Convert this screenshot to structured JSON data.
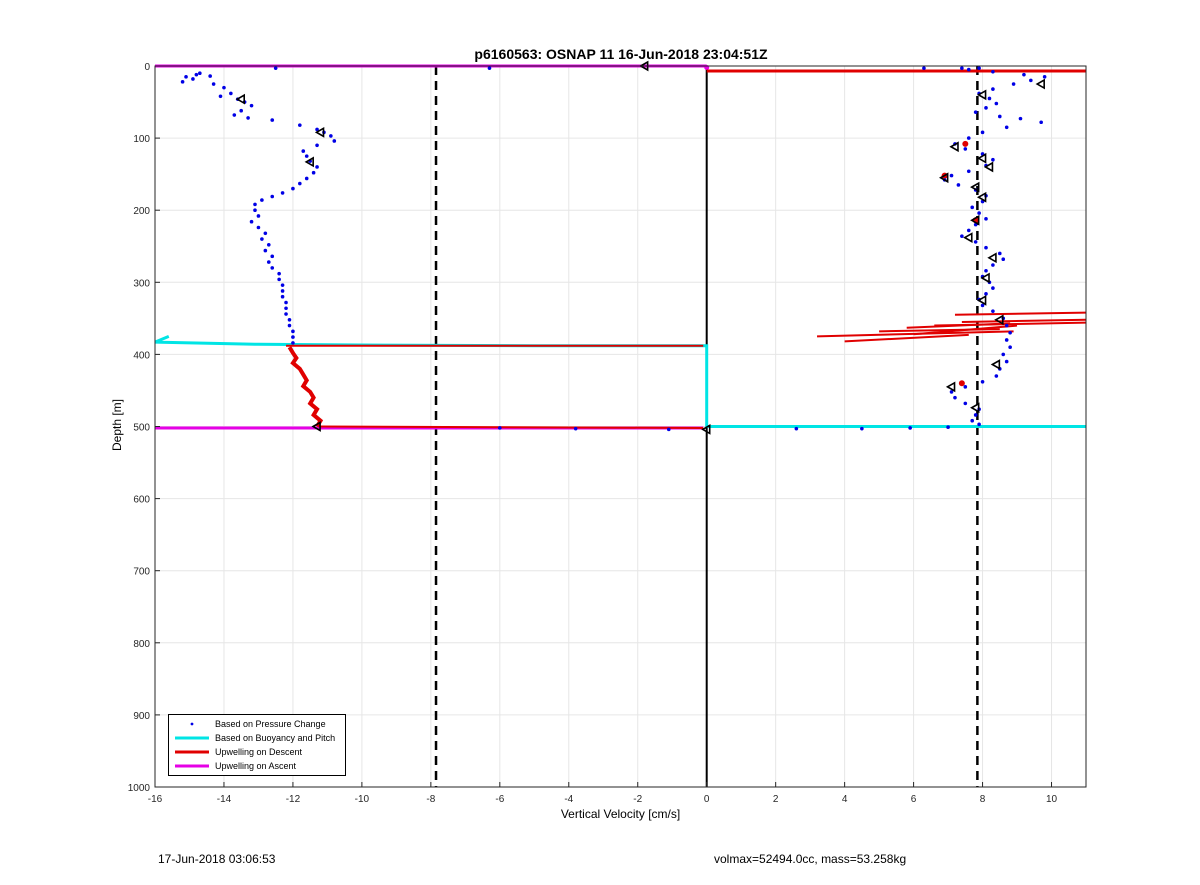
{
  "chart_data": {
    "type": "scatter",
    "title": "p6160563: OSNAP 11 16-Jun-2018 23:04:51Z",
    "xlabel": "Vertical Velocity [cm/s]",
    "ylabel": "Depth [m]",
    "xlim": [
      -16,
      11
    ],
    "ylim": [
      0,
      1000
    ],
    "y_reversed": true,
    "grid": true,
    "x_ticks": [
      -16,
      -14,
      -12,
      -10,
      -8,
      -6,
      -4,
      -2,
      0,
      2,
      4,
      6,
      8,
      10
    ],
    "y_ticks": [
      0,
      100,
      200,
      300,
      400,
      500,
      600,
      700,
      800,
      900,
      1000
    ],
    "legend_position": "bottom-left",
    "reference_lines": {
      "dashed_x": [
        -7.85,
        7.85
      ],
      "solid_x": [
        0
      ]
    },
    "series": [
      {
        "name": "Based on Pressure Change",
        "style": "dots",
        "color": "#0000e6",
        "points": [
          [
            -14.8,
            12
          ],
          [
            -15.1,
            15
          ],
          [
            -14.7,
            10
          ],
          [
            -14.4,
            14
          ],
          [
            -14.9,
            18
          ],
          [
            -15.2,
            22
          ],
          [
            -14.3,
            25
          ],
          [
            -14.0,
            30
          ],
          [
            -13.8,
            38
          ],
          [
            -14.1,
            42
          ],
          [
            -13.6,
            46
          ],
          [
            -13.4,
            50
          ],
          [
            -13.2,
            55
          ],
          [
            -13.5,
            62
          ],
          [
            -13.7,
            68
          ],
          [
            -13.3,
            72
          ],
          [
            -12.6,
            75
          ],
          [
            -11.8,
            82
          ],
          [
            -11.3,
            88
          ],
          [
            -11.1,
            92
          ],
          [
            -10.9,
            97
          ],
          [
            -10.8,
            104
          ],
          [
            -11.3,
            110
          ],
          [
            -11.7,
            118
          ],
          [
            -11.6,
            125
          ],
          [
            -11.5,
            132
          ],
          [
            -11.3,
            140
          ],
          [
            -11.4,
            148
          ],
          [
            -11.6,
            156
          ],
          [
            -11.8,
            163
          ],
          [
            -12.0,
            170
          ],
          [
            -12.3,
            176
          ],
          [
            -12.6,
            181
          ],
          [
            -12.9,
            186
          ],
          [
            -13.1,
            192
          ],
          [
            -13.1,
            200
          ],
          [
            -13.0,
            208
          ],
          [
            -13.2,
            216
          ],
          [
            -13.0,
            224
          ],
          [
            -12.8,
            232
          ],
          [
            -12.9,
            240
          ],
          [
            -12.7,
            248
          ],
          [
            -12.8,
            256
          ],
          [
            -12.6,
            264
          ],
          [
            -12.7,
            272
          ],
          [
            -12.6,
            280
          ],
          [
            -12.4,
            288
          ],
          [
            -12.4,
            296
          ],
          [
            -12.3,
            304
          ],
          [
            -12.3,
            312
          ],
          [
            -12.3,
            320
          ],
          [
            -12.2,
            328
          ],
          [
            -12.2,
            336
          ],
          [
            -12.2,
            344
          ],
          [
            -12.1,
            352
          ],
          [
            -12.1,
            360
          ],
          [
            -12.0,
            368
          ],
          [
            -12.0,
            376
          ],
          [
            -12.0,
            384
          ],
          [
            -6.3,
            3
          ],
          [
            -12.5,
            3
          ],
          [
            6.3,
            3
          ],
          [
            7.4,
            3
          ],
          [
            7.9,
            3
          ],
          [
            7.6,
            5
          ],
          [
            8.3,
            8
          ],
          [
            9.2,
            12
          ],
          [
            9.8,
            15
          ],
          [
            9.4,
            20
          ],
          [
            8.9,
            25
          ],
          [
            8.3,
            32
          ],
          [
            7.9,
            38
          ],
          [
            8.2,
            45
          ],
          [
            8.4,
            52
          ],
          [
            8.1,
            58
          ],
          [
            7.8,
            64
          ],
          [
            8.5,
            70
          ],
          [
            9.1,
            73
          ],
          [
            9.7,
            78
          ],
          [
            8.7,
            85
          ],
          [
            8.0,
            92
          ],
          [
            7.6,
            100
          ],
          [
            7.2,
            108
          ],
          [
            7.5,
            115
          ],
          [
            8.0,
            122
          ],
          [
            8.3,
            130
          ],
          [
            8.1,
            138
          ],
          [
            7.6,
            146
          ],
          [
            7.1,
            152
          ],
          [
            6.9,
            158
          ],
          [
            7.3,
            165
          ],
          [
            7.8,
            172
          ],
          [
            8.1,
            180
          ],
          [
            8.0,
            188
          ],
          [
            7.7,
            196
          ],
          [
            7.9,
            204
          ],
          [
            8.1,
            212
          ],
          [
            7.8,
            220
          ],
          [
            7.6,
            228
          ],
          [
            7.4,
            236
          ],
          [
            7.8,
            244
          ],
          [
            8.1,
            252
          ],
          [
            8.5,
            260
          ],
          [
            8.6,
            268
          ],
          [
            8.3,
            276
          ],
          [
            8.1,
            284
          ],
          [
            8.0,
            292
          ],
          [
            8.2,
            300
          ],
          [
            8.3,
            308
          ],
          [
            8.1,
            316
          ],
          [
            7.9,
            324
          ],
          [
            8.0,
            332
          ],
          [
            8.3,
            340
          ],
          [
            8.6,
            350
          ],
          [
            8.7,
            360
          ],
          [
            8.8,
            370
          ],
          [
            8.7,
            380
          ],
          [
            8.8,
            390
          ],
          [
            8.6,
            400
          ],
          [
            8.7,
            410
          ],
          [
            8.5,
            420
          ],
          [
            8.4,
            430
          ],
          [
            8.0,
            438
          ],
          [
            7.5,
            445
          ],
          [
            7.1,
            452
          ],
          [
            7.2,
            460
          ],
          [
            7.5,
            468
          ],
          [
            7.9,
            476
          ],
          [
            7.8,
            484
          ],
          [
            7.7,
            492
          ],
          [
            7.9,
            497
          ],
          [
            -6.0,
            502
          ],
          [
            -3.8,
            503
          ],
          [
            -1.1,
            504
          ],
          [
            2.6,
            503
          ],
          [
            4.5,
            503
          ],
          [
            5.9,
            502
          ],
          [
            7.0,
            501
          ]
        ]
      },
      {
        "name": "Based on Buoyancy and Pitch",
        "style": "line",
        "color": "#00e5e5",
        "points": [
          [
            -15.6,
            375
          ],
          [
            -16,
            383
          ],
          [
            -13,
            386
          ],
          [
            -10,
            387
          ],
          [
            -5,
            388
          ],
          [
            -0.2,
            388
          ],
          [
            0,
            388
          ],
          [
            0,
            500
          ],
          [
            11,
            500
          ]
        ]
      },
      {
        "name": "Upwelling on Descent",
        "style": "line",
        "color": "#e00000",
        "points": [
          [
            0,
            7
          ],
          [
            11,
            7
          ]
        ],
        "descent_profile": [
          [
            -12.1,
            390
          ],
          [
            -12.0,
            398
          ],
          [
            -11.9,
            405
          ],
          [
            -12.0,
            412
          ],
          [
            -11.8,
            420
          ],
          [
            -11.7,
            428
          ],
          [
            -11.6,
            436
          ],
          [
            -11.7,
            444
          ],
          [
            -11.5,
            452
          ],
          [
            -11.4,
            460
          ],
          [
            -11.5,
            468
          ],
          [
            -11.3,
            476
          ],
          [
            -11.4,
            484
          ],
          [
            -11.2,
            492
          ],
          [
            -11.3,
            500
          ]
        ],
        "crossing_at_388": [
          [
            -12.2,
            388
          ],
          [
            -0.1,
            388
          ]
        ],
        "crossing_at_500": [
          [
            -11.2,
            500
          ],
          [
            -0.1,
            502
          ]
        ],
        "spikes": [
          [
            [
              7.2,
              345
            ],
            [
              11,
              342
            ]
          ],
          [
            [
              7.4,
              355
            ],
            [
              11,
              352
            ]
          ],
          [
            [
              6.6,
              360
            ],
            [
              11,
              356
            ]
          ],
          [
            [
              5.8,
              363
            ],
            [
              8.8,
              357
            ]
          ],
          [
            [
              3.2,
              375
            ],
            [
              8.9,
              368
            ]
          ],
          [
            [
              4.0,
              382
            ],
            [
              7.6,
              373
            ]
          ],
          [
            [
              5.0,
              368
            ],
            [
              8.5,
              365
            ]
          ],
          [
            [
              6.0,
              372
            ],
            [
              9.0,
              360
            ]
          ]
        ],
        "dots": [
          [
            7.5,
            108
          ],
          [
            6.9,
            152
          ],
          [
            7.8,
            214
          ],
          [
            7.4,
            440
          ]
        ]
      },
      {
        "name": "Upwelling on Ascent",
        "style": "line",
        "color": "#e600e6",
        "points": [
          [
            -16,
            0
          ],
          [
            0,
            0
          ]
        ],
        "segment_500": [
          [
            -16,
            502
          ],
          [
            -0.1,
            502
          ]
        ],
        "dots": [
          [
            0,
            2
          ]
        ]
      }
    ],
    "triangle_markers": [
      [
        -1.8,
        0
      ],
      [
        -13.5,
        46
      ],
      [
        -11.2,
        92
      ],
      [
        -11.5,
        133
      ],
      [
        -11.3,
        500
      ],
      [
        0,
        504
      ],
      [
        9.7,
        25
      ],
      [
        8.0,
        40
      ],
      [
        7.2,
        112
      ],
      [
        8.0,
        128
      ],
      [
        8.2,
        140
      ],
      [
        6.9,
        155
      ],
      [
        7.8,
        168
      ],
      [
        8.0,
        182
      ],
      [
        7.8,
        214
      ],
      [
        7.6,
        238
      ],
      [
        8.3,
        266
      ],
      [
        8.1,
        294
      ],
      [
        8.0,
        325
      ],
      [
        8.5,
        352
      ],
      [
        8.4,
        414
      ],
      [
        7.1,
        445
      ],
      [
        7.8,
        474
      ]
    ]
  },
  "footer": {
    "timestamp": "17-Jun-2018 03:06:53",
    "info": "volmax=52494.0cc, mass=53.258kg"
  },
  "legend": {
    "items": [
      {
        "label": "Based on Pressure Change",
        "color": "#0000e6",
        "kind": "dot"
      },
      {
        "label": "Based on Buoyancy and Pitch",
        "color": "#00e5e5",
        "kind": "line"
      },
      {
        "label": "Upwelling on Descent",
        "color": "#e00000",
        "kind": "line"
      },
      {
        "label": "Upwelling on Ascent",
        "color": "#e600e6",
        "kind": "line"
      }
    ]
  }
}
